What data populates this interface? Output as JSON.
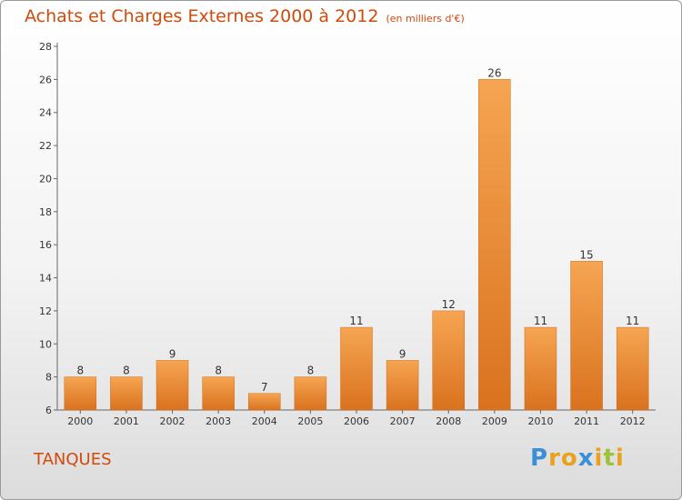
{
  "header": {
    "title": "Achats et Charges Externes 2000 à 2012",
    "subtitle": "(en milliers d'€)"
  },
  "commune": "TANQUES",
  "logo": {
    "text": "Proxiti",
    "letters": [
      {
        "ch": "P",
        "color": "#3a8fd6"
      },
      {
        "ch": "r",
        "color": "#e8a21c"
      },
      {
        "ch": "o",
        "color": "#e8a21c"
      },
      {
        "ch": "x",
        "color": "#3a8fd6"
      },
      {
        "ch": "i",
        "color": "#e8a21c"
      },
      {
        "ch": "t",
        "color": "#9bc43c"
      },
      {
        "ch": "i",
        "color": "#e8a21c"
      }
    ]
  },
  "colors": {
    "bar_light": "#f6a552",
    "bar_dark": "#d9721f",
    "title": "#d04a0c"
  },
  "chart_data": {
    "type": "bar",
    "title": "Achats et Charges Externes 2000 à 2012",
    "subtitle": "(en milliers d'€)",
    "categories": [
      "2000",
      "2001",
      "2002",
      "2003",
      "2004",
      "2005",
      "2006",
      "2007",
      "2008",
      "2009",
      "2010",
      "2011",
      "2012"
    ],
    "values": [
      8,
      8,
      9,
      8,
      7,
      8,
      11,
      9,
      12,
      26,
      11,
      15,
      11
    ],
    "ylim": [
      6,
      28
    ],
    "yticks": [
      6,
      8,
      10,
      12,
      14,
      16,
      18,
      20,
      22,
      24,
      26,
      28
    ],
    "grid": false,
    "legend": "none"
  }
}
